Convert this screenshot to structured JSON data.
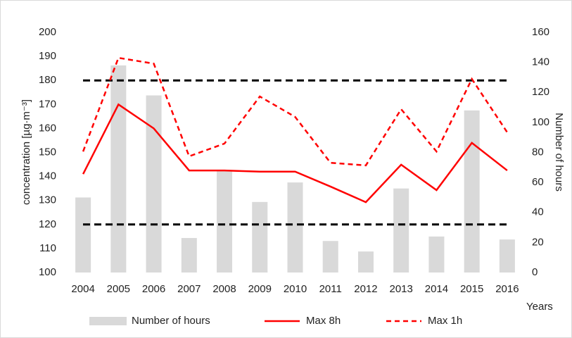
{
  "chart_data": {
    "type": "bar_line",
    "categories": [
      "2004",
      "2005",
      "2006",
      "2007",
      "2008",
      "2009",
      "2010",
      "2011",
      "2012",
      "2013",
      "2014",
      "2015",
      "2016"
    ],
    "series": [
      {
        "name": "Number of hours",
        "type": "bar",
        "axis": "y2",
        "color": "#d9d9d9",
        "values": [
          50,
          138,
          118,
          23,
          68,
          47,
          60,
          21,
          14,
          56,
          24,
          108,
          22
        ]
      },
      {
        "name": "Max 8h",
        "type": "line",
        "dash": false,
        "color": "#ff0000",
        "values": [
          141,
          170,
          160,
          142.5,
          142.5,
          142,
          142,
          135.8,
          129.3,
          144.9,
          134.3,
          154,
          142.5
        ]
      },
      {
        "name": "Max 1h",
        "type": "line",
        "dash": true,
        "color": "#ff0000",
        "values": [
          150.4,
          189.4,
          187,
          148.4,
          153.7,
          173.3,
          164.8,
          145.7,
          144.6,
          168,
          150.4,
          180.6,
          158.4
        ]
      }
    ],
    "reference_lines": [
      180,
      120
    ],
    "ylim": [
      100,
      200
    ],
    "yticks": [
      100,
      110,
      120,
      130,
      140,
      150,
      160,
      170,
      180,
      190,
      200
    ],
    "y2lim": [
      0,
      160
    ],
    "y2ticks": [
      0,
      20,
      40,
      60,
      80,
      100,
      120,
      140,
      160
    ],
    "ylabel": "concentration [µg·m⁻³]",
    "y2label": "Number of hours",
    "xlabel": "Years",
    "legend": "bottom"
  }
}
